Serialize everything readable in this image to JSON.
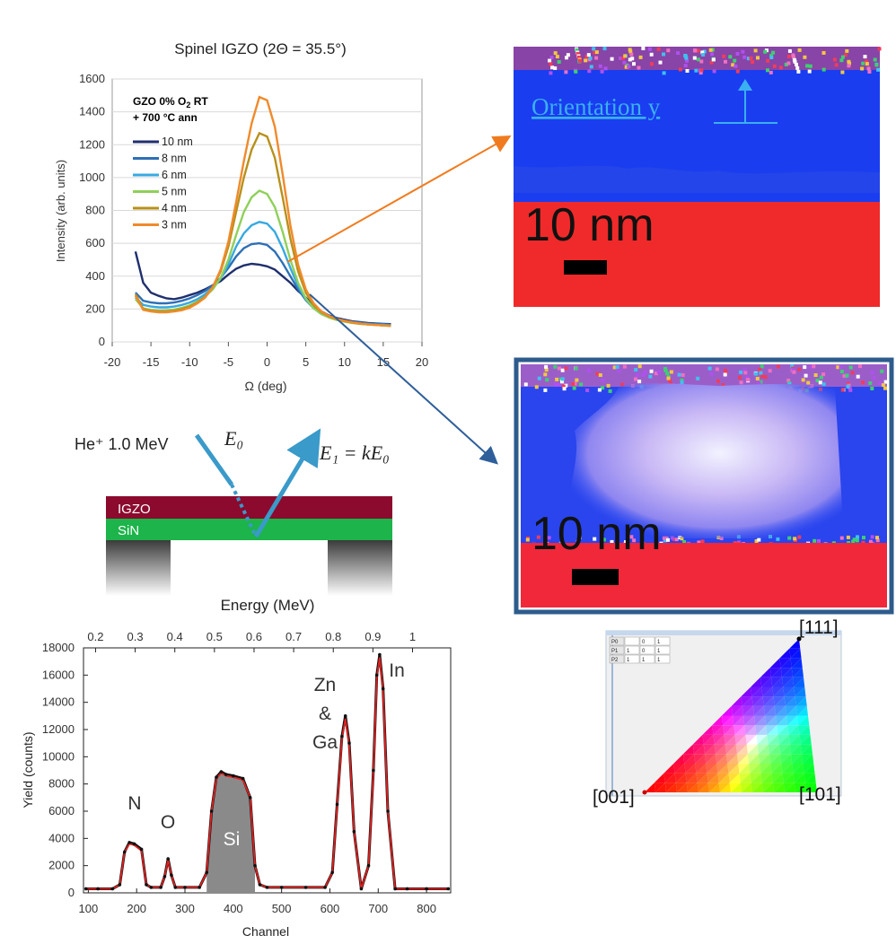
{
  "chart_data": [
    {
      "type": "line",
      "title": "Spinel IGZO (2Θ = 35.5°)",
      "xlabel": "Ω (deg)",
      "ylabel": "Intensity (arb. units)",
      "xlim": [
        -20,
        20
      ],
      "ylim": [
        0,
        1600
      ],
      "x_ticks": [
        -20,
        -15,
        -10,
        -5,
        0,
        5,
        10,
        15,
        20
      ],
      "y_ticks": [
        0,
        200,
        400,
        600,
        800,
        1000,
        1200,
        1400,
        1600
      ],
      "legend_title_lines": [
        "GZO 0% O",
        "2",
        " RT",
        "+ 700 °C ann"
      ],
      "legend_position": "top-left",
      "grid": true,
      "x": [
        -17,
        -16,
        -15,
        -14,
        -13,
        -12,
        -11,
        -10,
        -9,
        -8,
        -7,
        -6,
        -5,
        -4,
        -3,
        -2,
        -1,
        0,
        1,
        2,
        3,
        4,
        5,
        6,
        7,
        8,
        9,
        10,
        11,
        12,
        13,
        14,
        15,
        16
      ],
      "series": [
        {
          "name": "10 nm",
          "color": "#1f2f6e",
          "values": [
            550,
            360,
            300,
            280,
            265,
            260,
            270,
            285,
            300,
            320,
            345,
            370,
            410,
            445,
            465,
            475,
            470,
            460,
            440,
            400,
            360,
            310,
            270,
            220,
            185,
            160,
            145,
            135,
            125,
            120,
            115,
            112,
            110,
            108
          ]
        },
        {
          "name": "8 nm",
          "color": "#2e6fb5",
          "values": [
            300,
            250,
            240,
            235,
            235,
            240,
            250,
            265,
            285,
            310,
            345,
            390,
            450,
            520,
            570,
            595,
            600,
            590,
            550,
            480,
            400,
            320,
            255,
            205,
            175,
            155,
            140,
            130,
            122,
            118,
            112,
            110,
            108,
            105
          ]
        },
        {
          "name": "6 nm",
          "color": "#38a9e0",
          "values": [
            270,
            225,
            215,
            210,
            210,
            215,
            225,
            240,
            260,
            290,
            330,
            385,
            470,
            580,
            660,
            710,
            730,
            720,
            670,
            570,
            450,
            340,
            260,
            205,
            170,
            150,
            135,
            125,
            118,
            112,
            108,
            105,
            103,
            100
          ]
        },
        {
          "name": "5 nm",
          "color": "#8fd05a",
          "values": [
            260,
            205,
            195,
            190,
            192,
            197,
            207,
            222,
            245,
            275,
            320,
            390,
            500,
            650,
            790,
            880,
            920,
            900,
            820,
            670,
            500,
            360,
            265,
            205,
            170,
            148,
            133,
            123,
            115,
            110,
            106,
            103,
            100,
            98
          ]
        },
        {
          "name": "4 nm",
          "color": "#b8901a",
          "values": [
            290,
            200,
            190,
            185,
            185,
            190,
            200,
            215,
            240,
            275,
            335,
            430,
            580,
            790,
            1000,
            1170,
            1270,
            1250,
            1120,
            880,
            630,
            430,
            300,
            225,
            180,
            155,
            138,
            126,
            117,
            111,
            106,
            103,
            100,
            97
          ]
        },
        {
          "name": "3 nm",
          "color": "#f08a2b",
          "values": [
            280,
            195,
            185,
            180,
            180,
            185,
            193,
            208,
            235,
            270,
            335,
            440,
            610,
            850,
            1100,
            1330,
            1490,
            1470,
            1310,
            1020,
            710,
            470,
            320,
            235,
            185,
            158,
            140,
            128,
            119,
            112,
            107,
            103,
            100,
            97
          ]
        }
      ]
    },
    {
      "type": "line",
      "xlabel": "Channel",
      "ylabel": "Yield (counts)",
      "xlim": [
        90,
        850
      ],
      "ylim": [
        0,
        18000
      ],
      "x_ticks": [
        100,
        200,
        300,
        400,
        500,
        600,
        700,
        800
      ],
      "y_ticks": [
        0,
        2000,
        4000,
        6000,
        8000,
        10000,
        12000,
        14000,
        16000,
        18000
      ],
      "top_axis_label": "Energy (MeV)",
      "top_ticks": [
        "0.2",
        "0.3",
        "0.4",
        "0.5",
        "0.6",
        "0.7",
        "0.8",
        "0.9",
        "1"
      ],
      "top_tick_channels": [
        115,
        197,
        279,
        361,
        443,
        525,
        607,
        689,
        771
      ],
      "x": [
        95,
        120,
        150,
        165,
        175,
        185,
        195,
        210,
        220,
        230,
        250,
        258,
        265,
        272,
        280,
        300,
        330,
        345,
        355,
        365,
        375,
        385,
        400,
        420,
        435,
        445,
        455,
        470,
        500,
        550,
        590,
        605,
        615,
        625,
        632,
        640,
        650,
        665,
        680,
        690,
        697,
        703,
        710,
        720,
        735,
        760,
        800,
        845
      ],
      "series": [
        {
          "name": "data",
          "color": "#111111",
          "values": [
            300,
            300,
            300,
            600,
            3000,
            3700,
            3600,
            3200,
            600,
            400,
            400,
            1200,
            2500,
            1300,
            400,
            400,
            400,
            1500,
            6000,
            8500,
            8900,
            8700,
            8600,
            8400,
            7000,
            2000,
            600,
            400,
            400,
            400,
            400,
            1500,
            6500,
            11500,
            13000,
            11000,
            4500,
            300,
            2000,
            9000,
            16000,
            17500,
            15000,
            6000,
            300,
            300,
            300,
            300
          ]
        },
        {
          "name": "fit",
          "color": "#e02020",
          "values": [
            300,
            300,
            300,
            600,
            3000,
            3600,
            3500,
            3100,
            600,
            400,
            400,
            1200,
            2400,
            1300,
            400,
            400,
            400,
            1500,
            6000,
            8400,
            8800,
            8600,
            8500,
            8300,
            7000,
            2000,
            600,
            400,
            400,
            400,
            400,
            1500,
            6400,
            11300,
            12800,
            10800,
            4500,
            300,
            2000,
            8900,
            15800,
            17300,
            14800,
            6000,
            300,
            300,
            300,
            300
          ]
        }
      ],
      "filled_region_series": "Si",
      "annotations": [
        "N",
        "O",
        "Si",
        "Zn",
        "&",
        "Ga",
        "In"
      ]
    }
  ],
  "diagram": {
    "beam_label": "He⁺ 1.0 MeV",
    "e0_label": "E₀",
    "e1_label": "E₁ = kE₀",
    "layer_top": "IGZO",
    "layer_bottom": "SiN"
  },
  "maps": {
    "top_orientation_label": "Orientation y",
    "top_scale": "10 nm",
    "bottom_scale": "10 nm"
  },
  "ipf_key": {
    "corner_111": "[111]",
    "corner_001": "[001]",
    "corner_101": "[101]",
    "table_rows": [
      [
        "P0",
        "",
        "0",
        "1"
      ],
      [
        "P1",
        "1",
        "0",
        "1"
      ],
      [
        "P2",
        "1",
        "1",
        "1"
      ]
    ]
  },
  "colors": {
    "blue_grain": "#1a3df0",
    "red_substrate": "#f02a2a",
    "igzo_layer": "#8b0a2e",
    "sin_layer": "#1cb44b",
    "arrow_orange": "#f07b1f",
    "arrow_blue": "#2f5f9a",
    "beam": "#3a9ac9"
  }
}
